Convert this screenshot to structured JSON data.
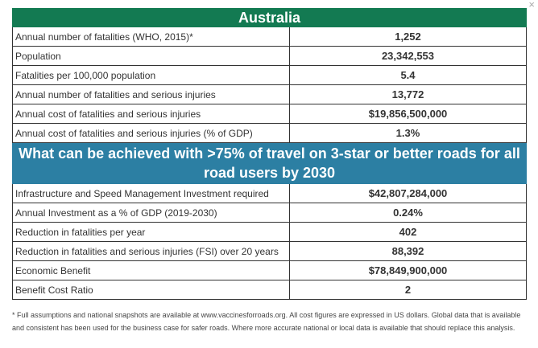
{
  "close_icon": "×",
  "country": "Australia",
  "rows_top": [
    {
      "label": "Annual number of fatalities (WHO, 2015)*",
      "value": "1,252"
    },
    {
      "label": "Population",
      "value": "23,342,553"
    },
    {
      "label": "Fatalities per 100,000 population",
      "value": "5.4"
    },
    {
      "label": "Annual number of fatalities and serious injuries",
      "value": "13,772"
    },
    {
      "label": "Annual cost of fatalities and serious injuries",
      "value": "$19,856,500,000"
    },
    {
      "label": "Annual cost of fatalities and serious injuries (% of GDP)",
      "value": "1.3%"
    }
  ],
  "section_heading": "What can be achieved with >75% of travel on 3-star or better roads for all road users by 2030",
  "rows_bottom": [
    {
      "label": "Infrastructure and Speed Management Investment required",
      "value": "$42,807,284,000"
    },
    {
      "label": "Annual Investment as a % of GDP (2019-2030)",
      "value": "0.24%"
    },
    {
      "label": "Reduction in fatalities per year",
      "value": "402"
    },
    {
      "label": "Reduction in fatalities and serious injuries (FSI) over 20 years",
      "value": "88,392"
    },
    {
      "label": "Economic Benefit",
      "value": "$78,849,900,000"
    },
    {
      "label": "Benefit Cost Ratio",
      "value": "2"
    }
  ],
  "footnote": "* Full assumptions and national snapshots are available at www.vaccinesforroads.org. All cost figures are expressed in US dollars. Global data that is available and consistent has been used for the business case for safer roads. Where more accurate national or local data is available that should replace this analysis.",
  "colors": {
    "header_green": "#137a52",
    "section_blue": "#2c7fa3"
  }
}
